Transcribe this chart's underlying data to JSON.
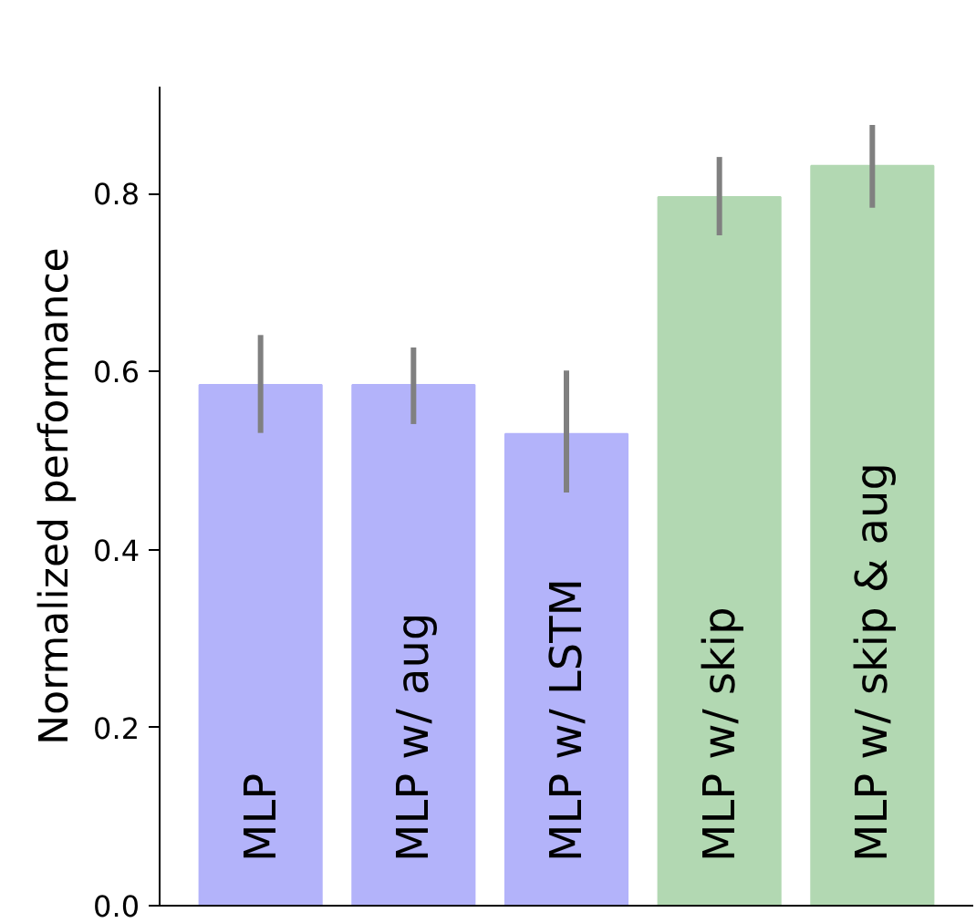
{
  "chart_data": {
    "type": "bar",
    "ylabel": "Normalized performance",
    "categories": [
      "MLP",
      "MLP w/ aug",
      "MLP w/ LSTM",
      "MLP w/ skip",
      "MLP w/ skip & aug"
    ],
    "values": [
      0.585,
      0.585,
      0.53,
      0.796,
      0.831
    ],
    "colors": [
      "#b3b3fa",
      "#b3b3fa",
      "#b3b3fa",
      "#b2d8b2",
      "#b2d8b2"
    ],
    "errors": [
      [
        0.531,
        0.641
      ],
      [
        0.541,
        0.627
      ],
      [
        0.464,
        0.601
      ],
      [
        0.753,
        0.841
      ],
      [
        0.784,
        0.877
      ]
    ],
    "ylim": [
      0,
      0.92
    ],
    "yticks": [
      {
        "value": 0,
        "label": "0.0"
      },
      0.2,
      0.4,
      0.6,
      0.8
    ],
    "grid": false
  }
}
